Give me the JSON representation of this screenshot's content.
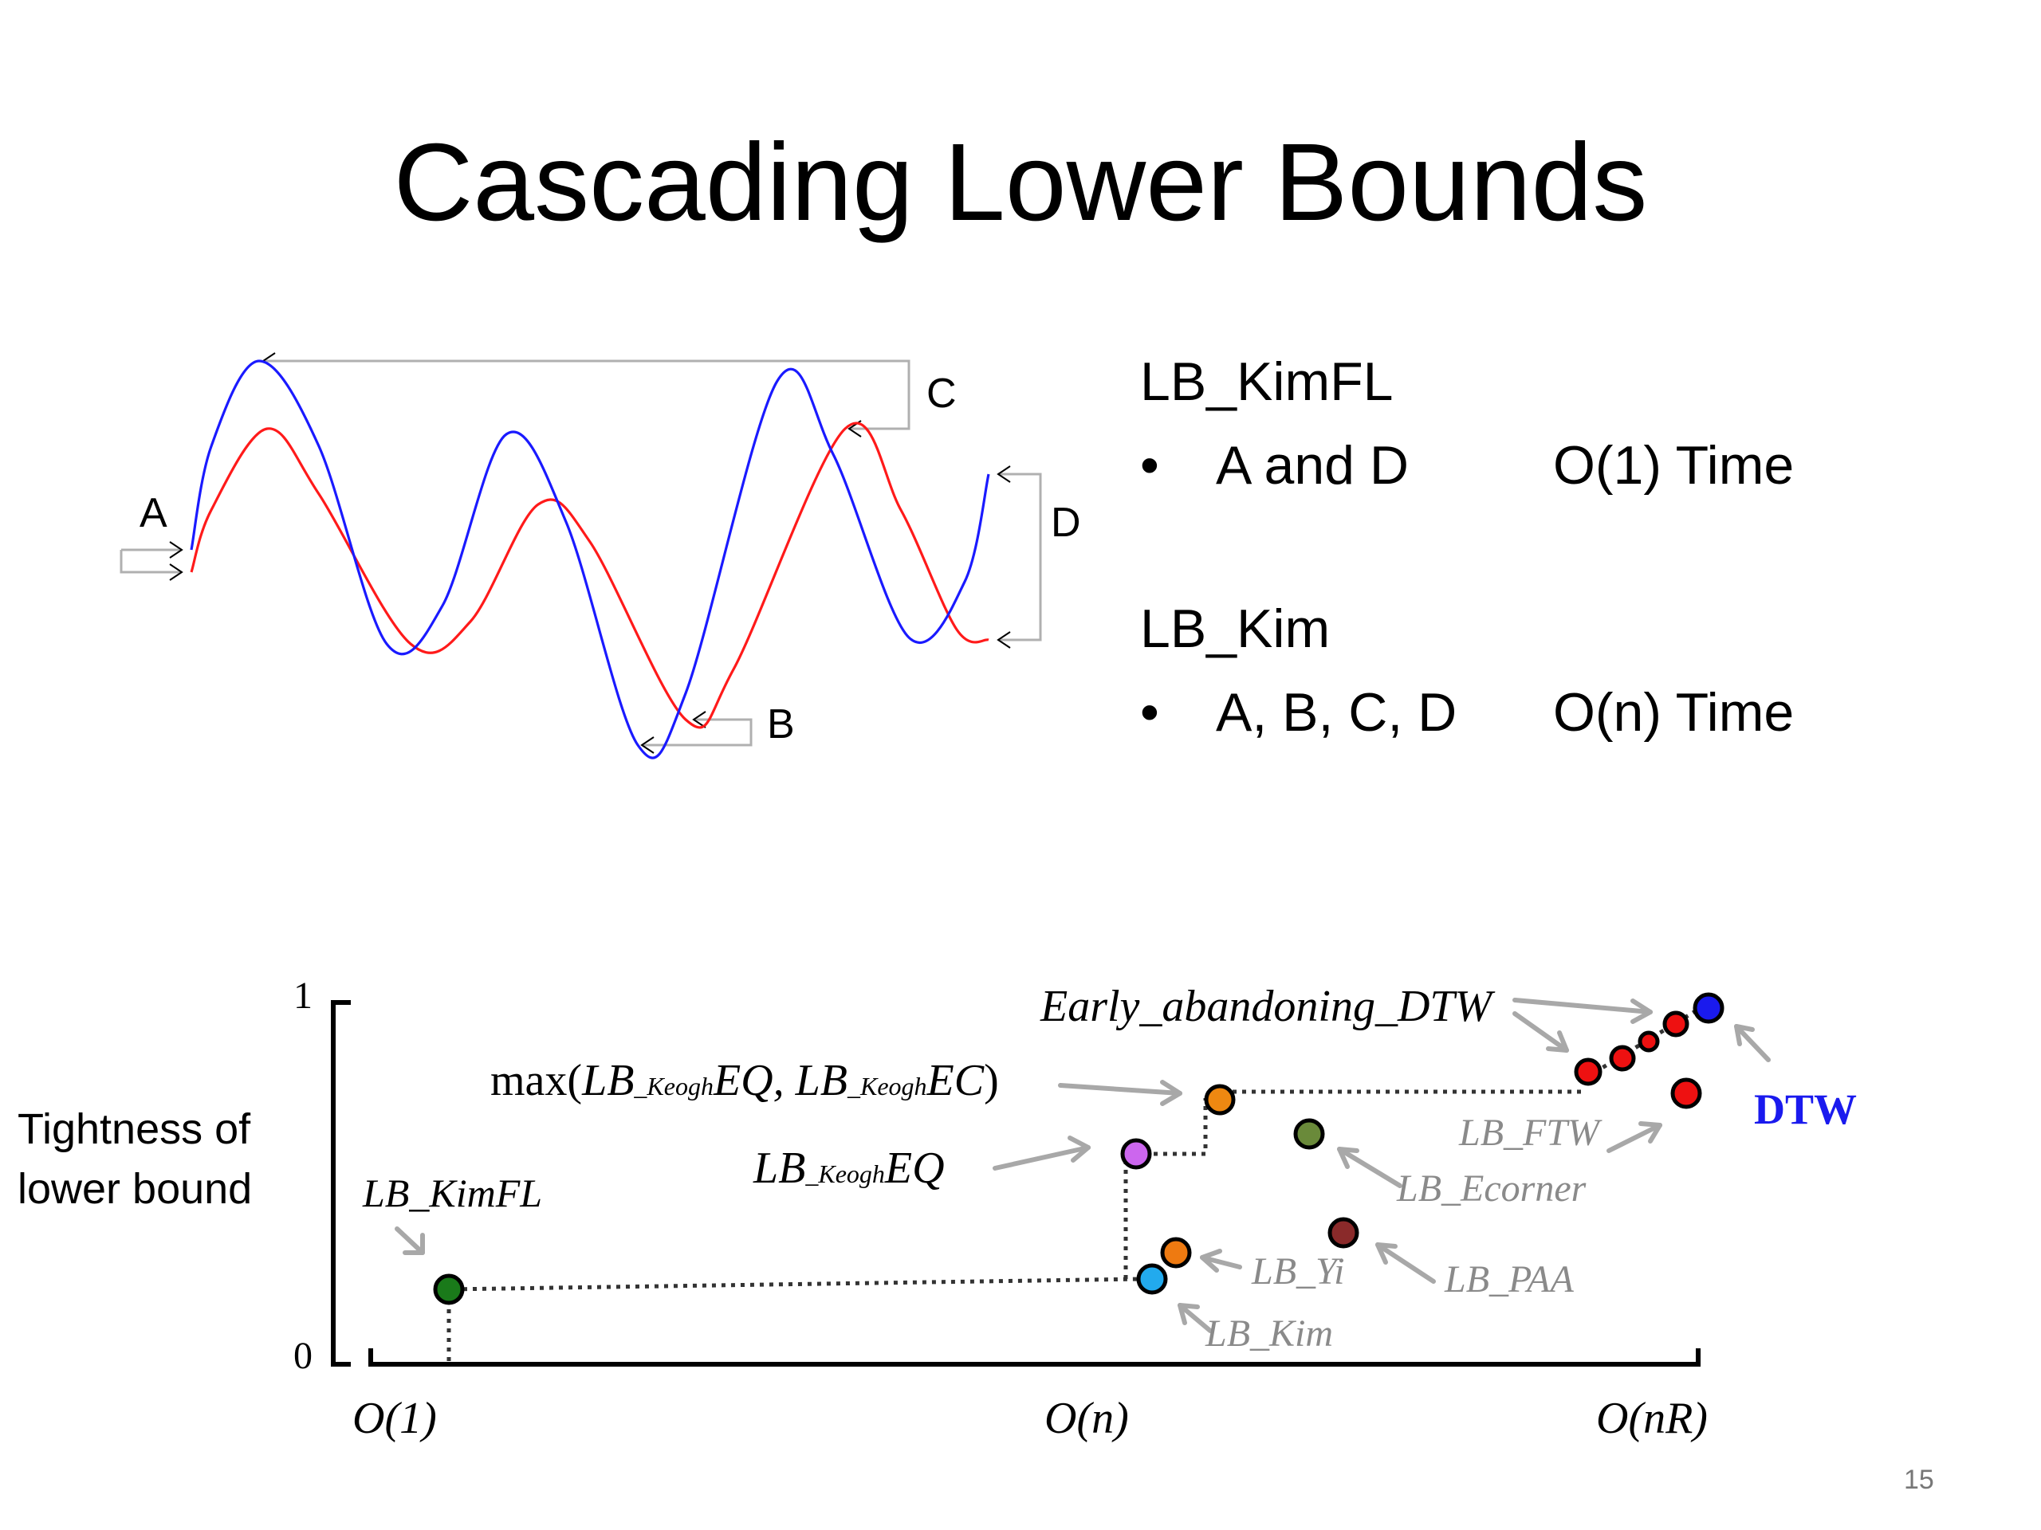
{
  "slide": {
    "title": "Cascading Lower Bounds",
    "page_number": "15"
  },
  "waveform": {
    "labels": {
      "a": "A",
      "b": "B",
      "c": "C",
      "d": "D"
    },
    "colors": {
      "query": "#1a1aff",
      "candidate": "#ff1a1a",
      "markers": "#b0b0b0"
    }
  },
  "right_panel": {
    "sections": [
      {
        "heading": "LB_KimFL",
        "bullet": "•",
        "text": "A and D",
        "complexity": "O(1) Time"
      },
      {
        "heading": "LB_Kim",
        "bullet": "•",
        "text": "A, B, C, D",
        "complexity": "O(n) Time"
      }
    ]
  },
  "plot": {
    "ylabel_line1": "Tightness of",
    "ylabel_line2": "lower bound",
    "y_tick_top": "1",
    "y_tick_bottom": "0",
    "x_ticks": {
      "o1": "O(1)",
      "on": "O(n)",
      "onr": "O(nR)"
    },
    "labels": {
      "lb_kimfl": "LB_KimFL",
      "lb_keogh_eq": {
        "main1": "LB",
        "sub": "_Keogh",
        "main2": "EQ"
      },
      "max_label": {
        "pre": "max(",
        "lb1": "LB",
        "sub1": "_Keogh",
        "eq": "EQ, ",
        "lb2": "LB",
        "sub2": "_Keogh",
        "ec": "EC",
        "post": ")"
      },
      "early_abandoning": "Early_abandoning_DTW",
      "dtw": "DTW",
      "lb_ftw": "LB_FTW",
      "lb_ecorner": "LB_Ecorner",
      "lb_yi": "LB_Yi",
      "lb_paa": "LB_PAA",
      "lb_kim": "LB_Kim"
    },
    "colors": {
      "lb_kimfl": "#1a7a1a",
      "lb_kim": "#22aaee",
      "lb_yi": "#ee7a11",
      "lb_keogh_eq": "#cc66ee",
      "max_keogh": "#ee8811",
      "lb_ecorner": "#6a8a3a",
      "lb_paa": "#8a2a2a",
      "early_abandon": "#ee1111",
      "lb_ftw": "#ee1111",
      "dtw": "#1a1aee",
      "gray_text": "#8a8a8a",
      "arrow": "#a8a8a8"
    }
  }
}
